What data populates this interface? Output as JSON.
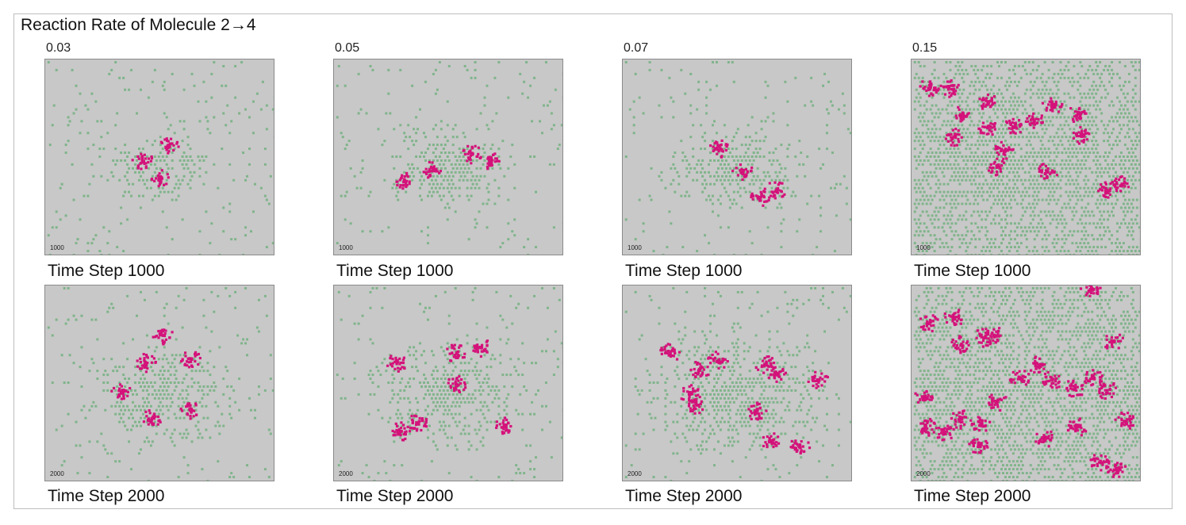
{
  "title": "Reaction Rate of Molecule 2→4",
  "columns": [
    {
      "rate": "0.03"
    },
    {
      "rate": "0.05"
    },
    {
      "rate": "0.07"
    },
    {
      "rate": "0.15"
    }
  ],
  "rows": [
    {
      "caption": "Time Step 1000",
      "stamp": "1000"
    },
    {
      "caption": "Time Step 2000",
      "stamp": "2000"
    }
  ],
  "colors": {
    "background_cell": "#c8c8c8",
    "molecule_green": "#7fb48a",
    "cluster_magenta": "#d4127a",
    "frame": "#8a8a8a"
  }
}
